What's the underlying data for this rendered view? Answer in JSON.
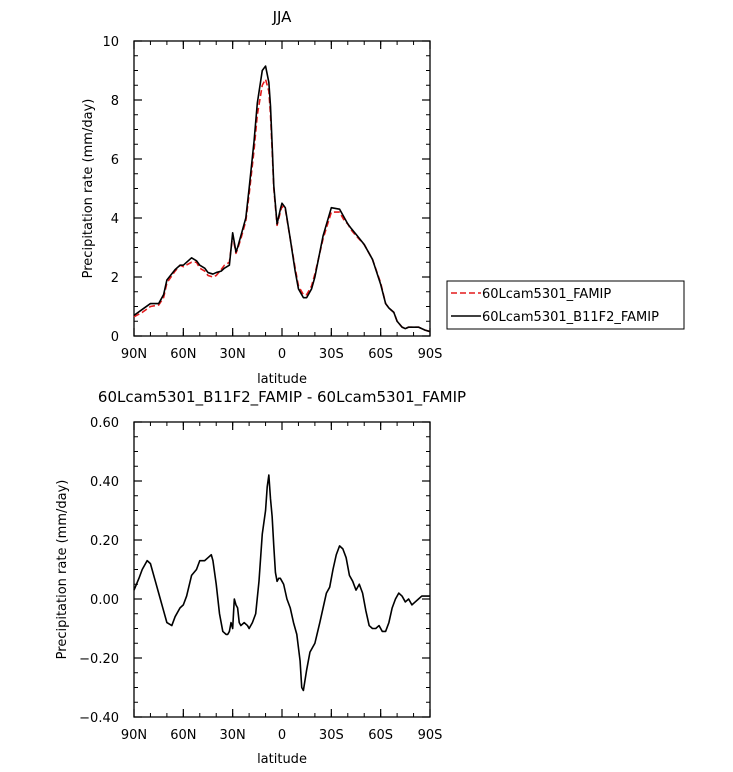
{
  "chart_data": [
    {
      "type": "line",
      "title": "JJA",
      "xlabel": "latitude",
      "ylabel": "Precipitation rate (mm/day)",
      "xlim": [
        90,
        -90
      ],
      "ylim": [
        0,
        10
      ],
      "xtick_values": [
        90,
        60,
        30,
        0,
        -30,
        -60,
        -90
      ],
      "xtick_labels": [
        "90N",
        "60N",
        "30N",
        "0",
        "30S",
        "60S",
        "90S"
      ],
      "ytick_values": [
        0,
        2,
        4,
        6,
        8,
        10
      ],
      "ytick_labels": [
        "0",
        "2",
        "4",
        "6",
        "8",
        "10"
      ],
      "legend": "right",
      "series": [
        {
          "name": "60Lcam5301_FAMIP",
          "color": "#e31a1c",
          "dash": "dashed",
          "x": [
            90,
            85,
            80,
            75,
            72,
            70,
            65,
            62,
            60,
            55,
            52,
            50,
            47,
            45,
            42,
            40,
            37,
            35,
            32,
            30,
            28,
            27,
            25,
            22,
            20,
            17,
            15,
            12,
            10,
            8,
            7,
            6,
            5,
            3,
            1,
            0,
            -2,
            -5,
            -8,
            -10,
            -13,
            -15,
            -18,
            -20,
            -25,
            -30,
            -35,
            -38,
            -40,
            -42,
            -45,
            -50,
            -55,
            -60,
            -63,
            -65,
            -68,
            -70,
            -73,
            -75,
            -77,
            -80,
            -83,
            -85,
            -87,
            -90
          ],
          "values": [
            0.65,
            0.8,
            1.0,
            1.05,
            1.3,
            1.8,
            2.2,
            2.4,
            2.35,
            2.5,
            2.5,
            2.3,
            2.2,
            2.05,
            2.0,
            2.05,
            2.25,
            2.4,
            2.5,
            3.4,
            2.8,
            2.95,
            3.3,
            3.9,
            4.8,
            6.3,
            7.5,
            8.5,
            8.7,
            8.3,
            7.5,
            6.3,
            5.0,
            3.75,
            4.2,
            4.4,
            4.3,
            3.3,
            2.3,
            1.7,
            1.4,
            1.4,
            1.7,
            2.1,
            3.3,
            4.2,
            4.2,
            3.9,
            3.8,
            3.6,
            3.4,
            3.1,
            2.6,
            1.8,
            1.1,
            0.95,
            0.8,
            0.5,
            0.3,
            0.25,
            0.3,
            0.3,
            0.3,
            0.25,
            0.2,
            0.15
          ]
        },
        {
          "name": "60Lcam5301_B11F2_FAMIP",
          "color": "#000000",
          "dash": "solid",
          "x": [
            90,
            85,
            80,
            75,
            72,
            70,
            65,
            62,
            60,
            55,
            52,
            50,
            47,
            45,
            42,
            40,
            37,
            35,
            32,
            30,
            28,
            27,
            25,
            22,
            20,
            17,
            15,
            12,
            10,
            8,
            7,
            6,
            5,
            3,
            1,
            0,
            -2,
            -5,
            -8,
            -10,
            -13,
            -15,
            -18,
            -20,
            -25,
            -30,
            -35,
            -38,
            -40,
            -42,
            -45,
            -50,
            -55,
            -60,
            -63,
            -65,
            -68,
            -70,
            -73,
            -75,
            -77,
            -80,
            -83,
            -85,
            -87,
            -90
          ],
          "values": [
            0.7,
            0.9,
            1.1,
            1.1,
            1.4,
            1.9,
            2.25,
            2.4,
            2.4,
            2.65,
            2.55,
            2.4,
            2.3,
            2.15,
            2.1,
            2.15,
            2.2,
            2.3,
            2.4,
            3.5,
            2.85,
            3.0,
            3.4,
            4.0,
            5.0,
            6.6,
            7.9,
            9.0,
            9.15,
            8.6,
            7.8,
            6.5,
            5.1,
            3.8,
            4.3,
            4.5,
            4.35,
            3.3,
            2.2,
            1.6,
            1.3,
            1.3,
            1.6,
            2.0,
            3.4,
            4.35,
            4.3,
            4.0,
            3.8,
            3.65,
            3.45,
            3.1,
            2.6,
            1.75,
            1.1,
            0.95,
            0.8,
            0.5,
            0.3,
            0.25,
            0.3,
            0.3,
            0.3,
            0.25,
            0.2,
            0.15
          ]
        }
      ]
    },
    {
      "type": "line",
      "title": "60Lcam5301_B11F2_FAMIP - 60Lcam5301_FAMIP",
      "xlabel": "latitude",
      "ylabel": "Precipitation rate (mm/day)",
      "xlim": [
        90,
        -90
      ],
      "ylim": [
        -0.4,
        0.6
      ],
      "xtick_values": [
        90,
        60,
        30,
        0,
        -30,
        -60,
        -90
      ],
      "xtick_labels": [
        "90N",
        "60N",
        "30N",
        "0",
        "30S",
        "60S",
        "90S"
      ],
      "ytick_values": [
        -0.4,
        -0.2,
        0.0,
        0.2,
        0.4,
        0.6
      ],
      "ytick_labels": [
        "−0.40",
        "−0.20",
        "0.00",
        "0.20",
        "0.40",
        "0.60"
      ],
      "series": [
        {
          "color": "#000000",
          "x": [
            90,
            87,
            85,
            82,
            80,
            77,
            75,
            72,
            70,
            67,
            65,
            62,
            60,
            58,
            55,
            52,
            50,
            47,
            45,
            43,
            42,
            40,
            38,
            36,
            34,
            33,
            32,
            31,
            30,
            29,
            28,
            27,
            26,
            25,
            23,
            21,
            20,
            18,
            16,
            14,
            12,
            10,
            9,
            8,
            7,
            6,
            5,
            4,
            3,
            2,
            1,
            0,
            -1,
            -3,
            -5,
            -7,
            -9,
            -11,
            -12,
            -13,
            -15,
            -17,
            -20,
            -23,
            -25,
            -27,
            -29,
            -31,
            -33,
            -35,
            -37,
            -39,
            -41,
            -43,
            -45,
            -47,
            -49,
            -51,
            -53,
            -55,
            -57,
            -59,
            -61,
            -63,
            -65,
            -67,
            -69,
            -71,
            -73,
            -75,
            -77,
            -79,
            -81,
            -83,
            -85,
            -87,
            -90
          ],
          "values": [
            0.03,
            0.07,
            0.1,
            0.13,
            0.12,
            0.06,
            0.02,
            -0.04,
            -0.08,
            -0.09,
            -0.06,
            -0.03,
            -0.02,
            0.01,
            0.08,
            0.1,
            0.13,
            0.13,
            0.14,
            0.15,
            0.13,
            0.05,
            -0.05,
            -0.11,
            -0.12,
            -0.12,
            -0.11,
            -0.08,
            -0.1,
            0.0,
            -0.02,
            -0.03,
            -0.08,
            -0.09,
            -0.08,
            -0.09,
            -0.1,
            -0.08,
            -0.05,
            0.06,
            0.22,
            0.3,
            0.38,
            0.42,
            0.34,
            0.28,
            0.18,
            0.09,
            0.06,
            0.07,
            0.07,
            0.06,
            0.05,
            0.0,
            -0.03,
            -0.08,
            -0.12,
            -0.21,
            -0.3,
            -0.31,
            -0.24,
            -0.18,
            -0.15,
            -0.08,
            -0.03,
            0.02,
            0.04,
            0.1,
            0.15,
            0.18,
            0.17,
            0.14,
            0.08,
            0.06,
            0.03,
            0.05,
            0.02,
            -0.04,
            -0.09,
            -0.1,
            -0.1,
            -0.09,
            -0.11,
            -0.11,
            -0.08,
            -0.03,
            0.0,
            0.02,
            0.01,
            -0.01,
            0.0,
            -0.02,
            -0.01,
            0.0,
            0.01,
            0.01,
            0.01
          ]
        }
      ]
    }
  ]
}
